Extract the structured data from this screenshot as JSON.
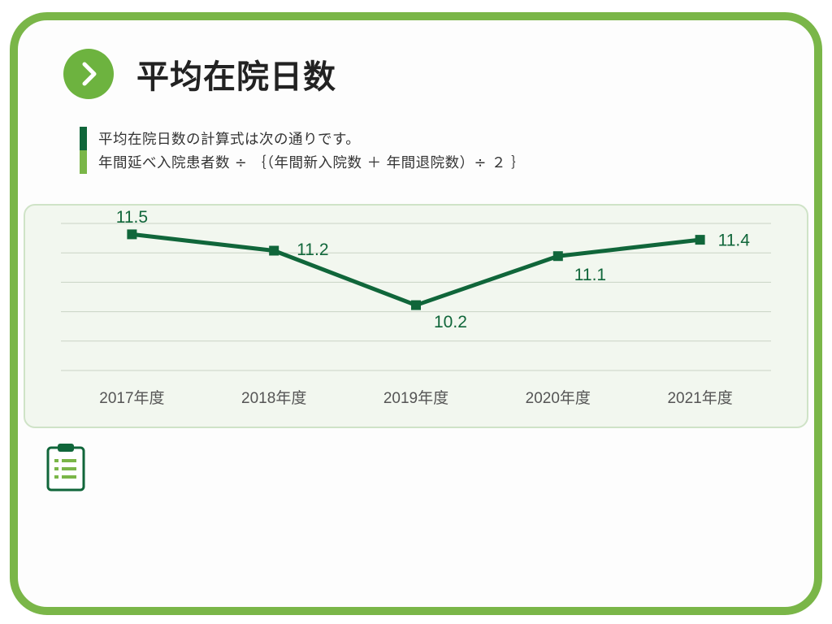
{
  "title": "平均在院日数",
  "icons": {
    "title": "chevron-right-icon",
    "note": "clipboard-list-icon"
  },
  "colors": {
    "accent": "#10663a",
    "frame": "#7ab648",
    "panel": "#f2f7ef"
  },
  "formula": {
    "line1": "平均在院日数の計算式は次の通りです。",
    "line2": "年間延べ入院患者数 ÷ ｛（年間新入院数 ＋ 年間退院数）÷ ２ ｝"
  },
  "chart_data": {
    "type": "line",
    "categories": [
      "2017年度",
      "2018年度",
      "2019年度",
      "2020年度",
      "2021年度"
    ],
    "values": [
      11.5,
      11.2,
      10.2,
      11.1,
      11.4
    ],
    "data_labels": [
      "11.5",
      "11.2",
      "10.2",
      "11.1",
      "11.4"
    ],
    "ylim": [
      9.0,
      11.7
    ],
    "grid": true,
    "series_color": "#10663a"
  }
}
